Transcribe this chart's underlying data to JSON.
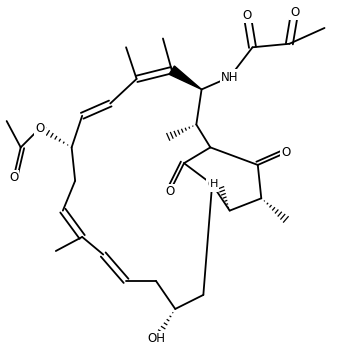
{
  "background": "#ffffff",
  "lw": 1.3,
  "figsize": [
    3.54,
    3.58
  ],
  "dpi": 100,
  "xlim": [
    0,
    10
  ],
  "ylim": [
    0,
    10
  ]
}
